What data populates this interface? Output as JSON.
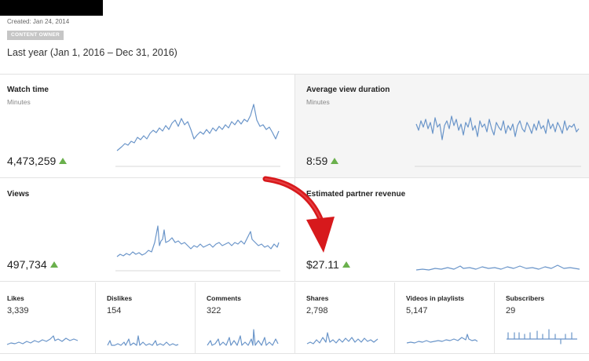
{
  "header": {
    "created": "Created: Jan 24, 2014",
    "badge": "CONTENT OWNER",
    "period": "Last year (Jan 1, 2016 – Dec 31, 2016)"
  },
  "cards": [
    {
      "title": "Watch time",
      "subtitle": "Minutes",
      "value": "4,473,259",
      "trend": "up"
    },
    {
      "title": "Average view duration",
      "subtitle": "Minutes",
      "value": "8:59",
      "trend": "up"
    },
    {
      "title": "Views",
      "subtitle": "",
      "value": "497,734",
      "trend": "up"
    },
    {
      "title": "Estimated partner revenue",
      "subtitle": "",
      "value": "$27.11",
      "trend": "up"
    }
  ],
  "small_cards": [
    {
      "title": "Likes",
      "value": "3,339"
    },
    {
      "title": "Dislikes",
      "value": "154"
    },
    {
      "title": "Comments",
      "value": "322"
    },
    {
      "title": "Shares",
      "value": "2,798"
    },
    {
      "title": "Videos in playlists",
      "value": "5,147"
    },
    {
      "title": "Subscribers",
      "value": "29"
    }
  ],
  "colors": {
    "line": "#6a95c9",
    "trend_up": "#6ab04c",
    "annotation_arrow": "#d7191c"
  }
}
